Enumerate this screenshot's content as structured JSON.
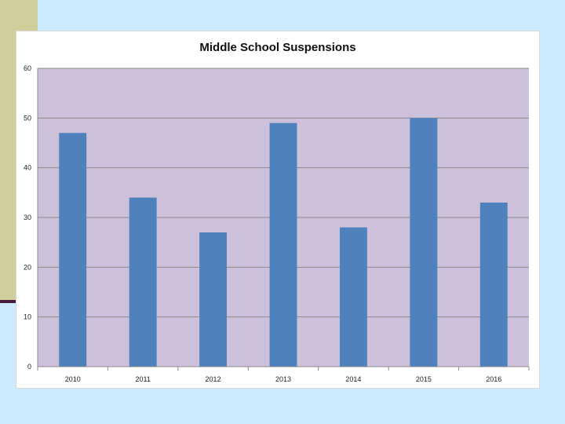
{
  "chart_data": {
    "type": "bar",
    "title": "Middle School Suspensions",
    "xlabel": "",
    "ylabel": "",
    "categories": [
      "2010",
      "2011",
      "2012",
      "2013",
      "2014",
      "2015",
      "2016"
    ],
    "values": [
      47,
      34,
      27,
      49,
      28,
      50,
      33
    ],
    "ylim": [
      0,
      60
    ],
    "yticks": [
      "0",
      "10",
      "20",
      "30",
      "40",
      "50",
      "60"
    ],
    "grid": true,
    "legend": "none",
    "bar_color": "#4f81bd",
    "plot_background": "#ccc0da"
  }
}
